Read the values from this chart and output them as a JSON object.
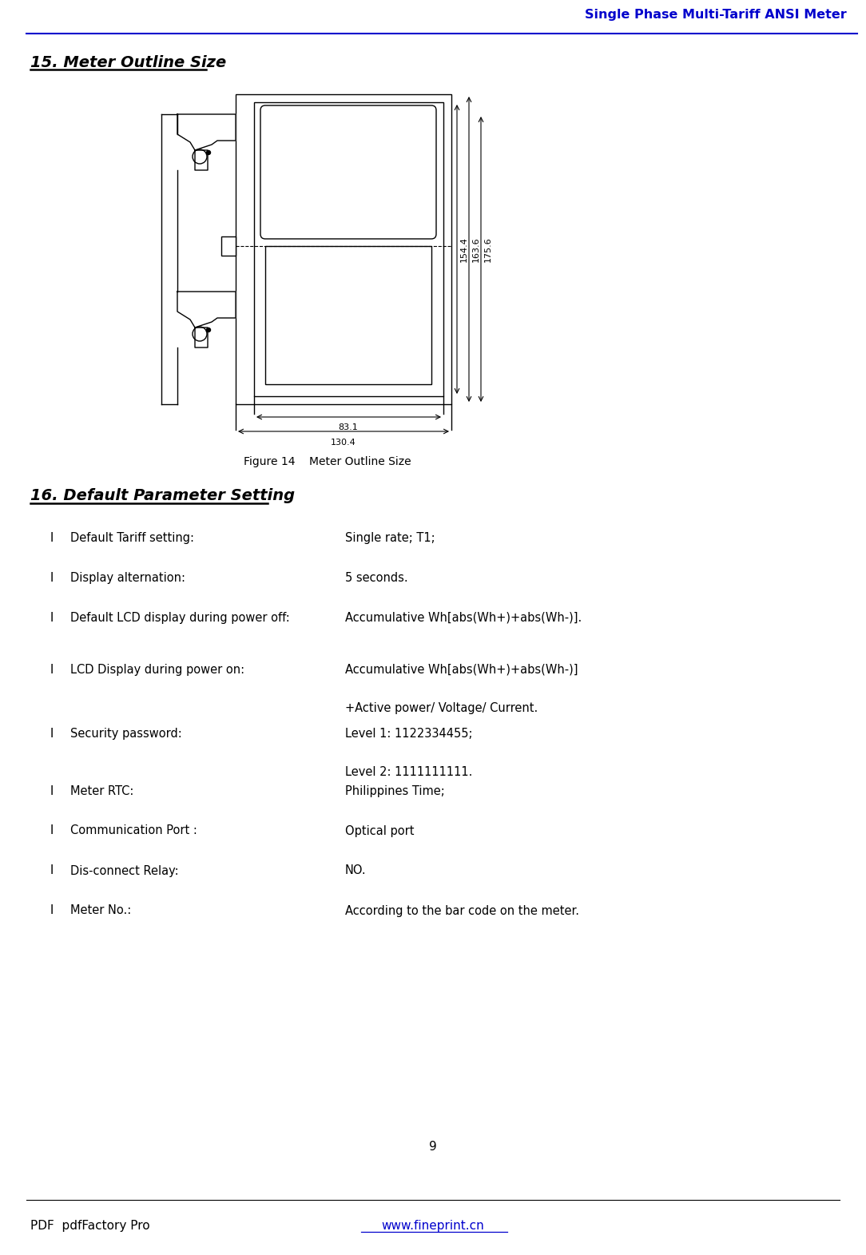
{
  "header_text": "Single Phase Multi-Tariff ANSI Meter",
  "header_color": "#0000CC",
  "header_line_color": "#0000CC",
  "section15_title": "15. Meter Outline Size",
  "figure_caption": "Figure 14    Meter Outline Size",
  "section16_title": "16. Default Parameter Setting",
  "bullet_items": [
    {
      "label": "Default Tariff setting:",
      "value": "Single rate; T1;"
    },
    {
      "label": "Display alternation:",
      "value": "5 seconds."
    },
    {
      "label": "Default LCD display during power off:",
      "value": "Accumulative Wh[abs(Wh+)+abs(Wh-)]."
    },
    {
      "label": "LCD Display during power on:",
      "value": "Accumulative Wh[abs(Wh+)+abs(Wh-)]",
      "value2": "+Active power/ Voltage/ Current."
    },
    {
      "label": "Security password:",
      "value": "Level 1: 1122334455;",
      "value2": "Level 2: 1111111111."
    },
    {
      "label": "Meter RTC:",
      "value": "Philippines Time;"
    },
    {
      "label": "Communication Port :",
      "value": "Optical port"
    },
    {
      "label": "Dis-connect Relay:",
      "value": "NO."
    },
    {
      "label": "Meter No.:",
      "value": "According to the bar code on the meter."
    }
  ],
  "page_number": "9",
  "footer_left": "PDF  pdfFactory Pro",
  "footer_right": "www.fineprint.cn",
  "footer_link_color": "#0000CC",
  "bg_color": "#FFFFFF"
}
